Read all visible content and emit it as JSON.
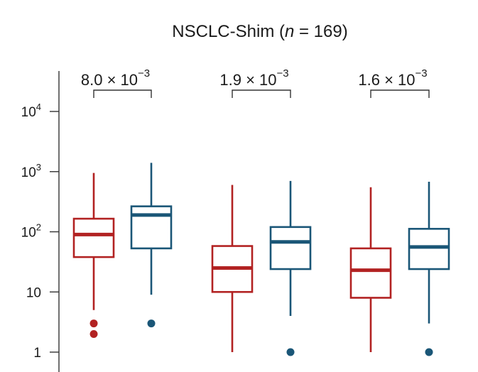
{
  "chart_data": {
    "type": "box",
    "title_main": "NSCLC-Shim (",
    "title_n": "n",
    "title_tail": " = 169)",
    "yscale": "log",
    "ylim": [
      1,
      20000
    ],
    "y_ticks": [
      {
        "value": 1,
        "base": "1",
        "exp": ""
      },
      {
        "value": 10,
        "base": "10",
        "exp": ""
      },
      {
        "value": 100,
        "base": "10",
        "exp": "2"
      },
      {
        "value": 1000,
        "base": "10",
        "exp": "3"
      },
      {
        "value": 10000,
        "base": "10",
        "exp": "4"
      }
    ],
    "colors": {
      "red": "#b22222",
      "blue": "#1a5677"
    },
    "groups": [
      {
        "pvalue": {
          "mantissa": "8.0 × 10",
          "exp": "−3"
        },
        "boxes": [
          {
            "color": "red",
            "whisker_low": 5,
            "q1": 38,
            "median": 90,
            "q3": 165,
            "whisker_high": 950,
            "outliers": [
              3,
              2
            ]
          },
          {
            "color": "blue",
            "whisker_low": 9,
            "q1": 53,
            "median": 190,
            "q3": 265,
            "whisker_high": 1400,
            "outliers": [
              3
            ]
          }
        ]
      },
      {
        "pvalue": {
          "mantissa": "1.9 × 10",
          "exp": "−3"
        },
        "boxes": [
          {
            "color": "red",
            "whisker_low": 1,
            "q1": 10,
            "median": 25,
            "q3": 58,
            "whisker_high": 600,
            "outliers": []
          },
          {
            "color": "blue",
            "whisker_low": 4,
            "q1": 24,
            "median": 68,
            "q3": 120,
            "whisker_high": 700,
            "outliers": [
              1
            ]
          }
        ]
      },
      {
        "pvalue": {
          "mantissa": "1.6 × 10",
          "exp": "−3"
        },
        "boxes": [
          {
            "color": "red",
            "whisker_low": 1,
            "q1": 8,
            "median": 23,
            "q3": 53,
            "whisker_high": 550,
            "outliers": []
          },
          {
            "color": "blue",
            "whisker_low": 3,
            "q1": 24,
            "median": 56,
            "q3": 112,
            "whisker_high": 680,
            "outliers": [
              1
            ]
          }
        ]
      }
    ]
  }
}
